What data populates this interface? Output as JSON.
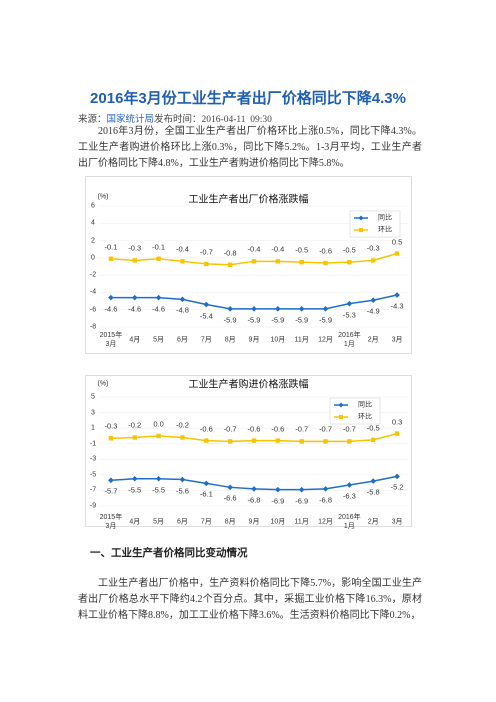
{
  "header": {
    "title": "2016年3月份工业生产者出厂价格同比下降4.3%",
    "source_label": "来源：",
    "source": "国家统计局",
    "time": "发布时间：2016-04-11  09:30"
  },
  "paragraphs": [
    "2016年3月份，全国工业生产者出厂价格环比上涨0.5%，同比下降4.3%。工业生产者购进价格环比上涨0.3%，同比下降5.2%。1-3月平均，工业生产者出厂价格同比下降4.8%，工业生产者购进价格同比下降5.8%。"
  ],
  "section": {
    "heading": "一、工业生产者价格同比变动情况",
    "text": "工业生产者出厂价格中，生产资料价格同比下降5.7%，影响全国工业生产者出厂价格总水平下降约4.2个百分点。其中，采掘工业价格下降16.3%，原材料工业价格下降8.8%，加工工业价格下降3.6%。生活资料价格同比下降0.2%，"
  },
  "chart_data": [
    {
      "type": "line",
      "title": "工业生产者出厂价格涨跌幅",
      "y_label": "(%)",
      "categories": [
        "2015年\n3月",
        "4月",
        "5月",
        "6月",
        "7月",
        "8月",
        "9月",
        "10月",
        "11月",
        "12月",
        "2016年\n1月",
        "2月",
        "3月"
      ],
      "series": [
        {
          "name": "同比",
          "color": "#1f6fc6",
          "values": [
            -4.6,
            -4.6,
            -4.6,
            -4.8,
            -5.4,
            -5.9,
            -5.9,
            -5.9,
            -5.9,
            -5.9,
            -5.3,
            -4.9,
            -4.3
          ]
        },
        {
          "name": "环比",
          "color": "#f6c500",
          "values": [
            -0.1,
            -0.3,
            -0.1,
            -0.4,
            -0.7,
            -0.8,
            -0.4,
            -0.4,
            -0.5,
            -0.6,
            -0.5,
            -0.3,
            0.5
          ]
        }
      ],
      "ylim": [
        -8,
        6
      ],
      "yticks": [
        -8,
        -6,
        -4,
        -2,
        0,
        2,
        4,
        6
      ],
      "grid": true,
      "legend": "upper right"
    },
    {
      "type": "line",
      "title": "工业生产者购进价格涨跌幅",
      "y_label": "(%)",
      "categories": [
        "2015年\n3月",
        "4月",
        "5月",
        "6月",
        "7月",
        "8月",
        "9月",
        "10月",
        "11月",
        "12月",
        "2016年\n1月",
        "2月",
        "3月"
      ],
      "series": [
        {
          "name": "同比",
          "color": "#1f6fc6",
          "values": [
            -5.7,
            -5.5,
            -5.5,
            -5.6,
            -6.1,
            -6.6,
            -6.8,
            -6.9,
            -6.9,
            -6.8,
            -6.3,
            -5.8,
            -5.2
          ]
        },
        {
          "name": "环比",
          "color": "#f6c500",
          "values": [
            -0.3,
            -0.2,
            0,
            -0.2,
            -0.6,
            -0.7,
            -0.6,
            -0.6,
            -0.7,
            -0.7,
            -0.7,
            -0.5,
            0.3
          ],
          "value_labels": [
            "-0.3",
            "-0.2",
            "0.0",
            "-0.2",
            "-0.6",
            "-0.7",
            "-0.6",
            "-0.6",
            "-0.7",
            "-0.7",
            "-0.7",
            "-0.5",
            "0.3"
          ]
        }
      ],
      "ylim": [
        -9,
        5
      ],
      "yticks": [
        -9,
        -7,
        -5,
        -3,
        -1,
        1,
        3,
        5
      ],
      "grid": true,
      "legend": "upper right"
    }
  ]
}
